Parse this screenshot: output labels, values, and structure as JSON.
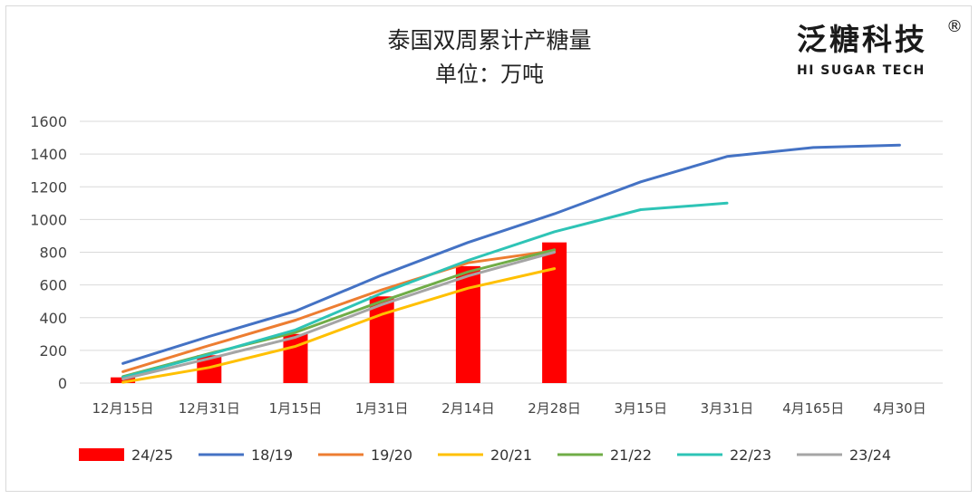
{
  "chart_data": {
    "type": "bar+line",
    "title": "泰国双周累计产糖量",
    "subtitle": "单位：万吨",
    "categories": [
      "12月15日",
      "12月31日",
      "1月15日",
      "1月31日",
      "2月14日",
      "2月28日",
      "3月15日",
      "3月31日",
      "4月165日",
      "4月30日"
    ],
    "ylim": [
      0,
      1600
    ],
    "yticks": [
      0,
      200,
      400,
      600,
      800,
      1000,
      1200,
      1400,
      1600
    ],
    "grid": true,
    "legend_position": "bottom",
    "series": [
      {
        "name": "24/25",
        "kind": "bar",
        "color": "#ff0000",
        "values": [
          35,
          170,
          300,
          530,
          715,
          860,
          null,
          null,
          null,
          null
        ]
      },
      {
        "name": "18/19",
        "kind": "line",
        "color": "#4472c4",
        "values": [
          120,
          285,
          440,
          660,
          860,
          1035,
          1230,
          1385,
          1440,
          1455
        ]
      },
      {
        "name": "19/20",
        "kind": "line",
        "color": "#ed7d31",
        "values": [
          70,
          230,
          385,
          570,
          735,
          810,
          null,
          null,
          null,
          null
        ]
      },
      {
        "name": "20/21",
        "kind": "line",
        "color": "#ffc000",
        "values": [
          5,
          95,
          225,
          420,
          580,
          700,
          null,
          null,
          null,
          null
        ]
      },
      {
        "name": "21/22",
        "kind": "line",
        "color": "#70ad47",
        "values": [
          40,
          180,
          310,
          500,
          680,
          815,
          null,
          null,
          null,
          null
        ]
      },
      {
        "name": "22/23",
        "kind": "line",
        "color": "#2ec4b6",
        "values": [
          35,
          175,
          325,
          550,
          750,
          925,
          1060,
          1100,
          null,
          null
        ]
      },
      {
        "name": "23/24",
        "kind": "line",
        "color": "#a5a5a5",
        "values": [
          25,
          150,
          280,
          480,
          655,
          800,
          null,
          null,
          null,
          null
        ]
      }
    ]
  },
  "brand": {
    "name_cn": "泛糖科技",
    "name_en": "HI SUGAR TECH",
    "reg_mark": "®"
  }
}
